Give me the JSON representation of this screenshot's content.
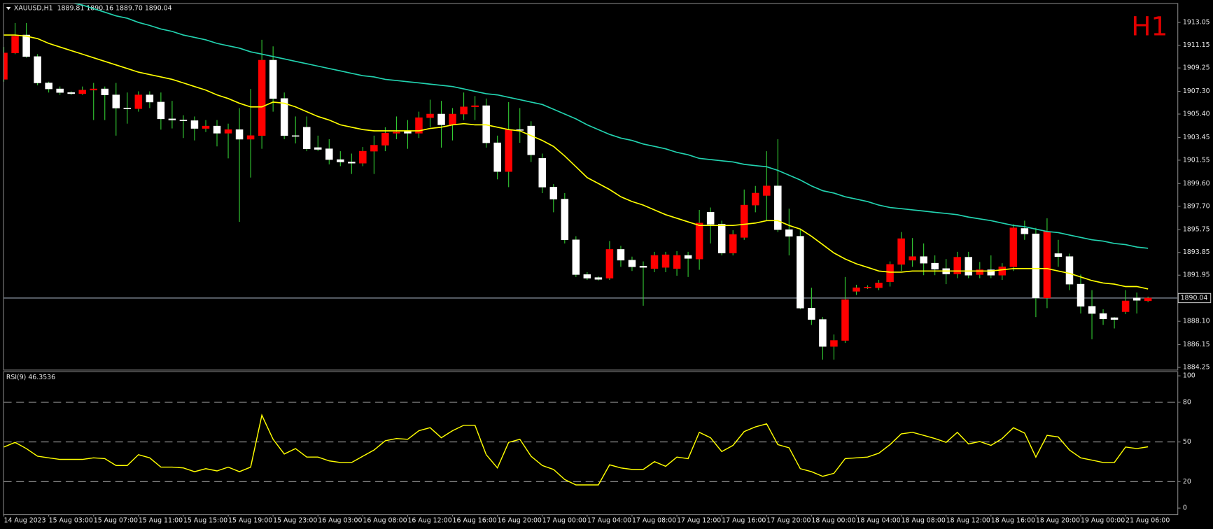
{
  "chart_data": [
    {
      "type": "candlestick",
      "header": "XAUUSD,H1  1889.81 1890.16 1889.70 1890.04",
      "timeframe": "H1",
      "categories": [
        "14 Aug 2023",
        null,
        null,
        null,
        "15 Aug 03:00",
        null,
        null,
        null,
        "15 Aug 07:00",
        null,
        null,
        null,
        "15 Aug 11:00",
        null,
        null,
        null,
        "15 Aug 15:00",
        null,
        null,
        null,
        "15 Aug 19:00",
        null,
        null,
        null,
        "15 Aug 23:00",
        null,
        null,
        null,
        "16 Aug 03:00",
        null,
        null,
        null,
        "16 Aug 08:00",
        null,
        null,
        null,
        "16 Aug 12:00",
        null,
        null,
        null,
        "16 Aug 16:00",
        null,
        null,
        null,
        "16 Aug 20:00",
        null,
        null,
        null,
        "17 Aug 00:00",
        null,
        null,
        null,
        "17 Aug 04:00",
        null,
        null,
        null,
        "17 Aug 08:00",
        null,
        null,
        null,
        "17 Aug 12:00",
        null,
        null,
        null,
        "17 Aug 16:00",
        null,
        null,
        null,
        "17 Aug 20:00",
        null,
        null,
        null,
        "18 Aug 00:00",
        null,
        null,
        null,
        "18 Aug 04:00",
        null,
        null,
        null,
        "18 Aug 08:00",
        null,
        null,
        null,
        "18 Aug 12:00",
        null,
        null,
        null,
        "18 Aug 16:00",
        null,
        null,
        null,
        "18 Aug 20:00",
        null,
        null,
        null,
        "19 Aug 00:00",
        null,
        null,
        null,
        "21 Aug 06:00",
        null,
        null
      ],
      "open": [
        1908.3,
        1910.5,
        1912.0,
        1910.2,
        1908.0,
        1907.5,
        1907.2,
        1907.1,
        1907.4,
        1907.5,
        1907.0,
        1905.9,
        1905.85,
        1907.0,
        1906.4,
        1905.0,
        1904.9,
        1904.85,
        1904.2,
        1904.4,
        1903.8,
        1904.1,
        1903.3,
        1903.6,
        1909.9,
        1906.7,
        1903.6,
        1904.3,
        1902.6,
        1902.5,
        1901.6,
        1901.4,
        1901.3,
        1902.3,
        1902.8,
        1903.8,
        1903.95,
        1903.8,
        1905.1,
        1905.4,
        1904.5,
        1905.4,
        1906.0,
        1906.1,
        1903.0,
        1900.6,
        1904.1,
        1904.4,
        1901.7,
        1899.3,
        1898.3,
        1894.9,
        1892.0,
        1891.75,
        1891.7,
        1894.1,
        1893.2,
        1892.7,
        1892.5,
        1892.6,
        1892.5,
        1893.6,
        1893.3,
        1897.2,
        1896.2,
        1893.8,
        1895.1,
        1897.8,
        1898.6,
        1899.4,
        1895.75,
        1895.2,
        1889.2,
        1888.25,
        1886.0,
        1886.5,
        1890.6,
        1890.9,
        1890.9,
        1891.4,
        1892.85,
        1893.2,
        1893.5,
        1892.95,
        1892.5,
        1892.05,
        1893.45,
        1892.0,
        1892.4,
        1891.95,
        1892.65,
        1895.85,
        1895.4,
        1890.05,
        1893.75,
        1893.5,
        1891.2,
        1889.35,
        1888.75,
        1888.4,
        1888.9,
        1890.05,
        1889.81
      ],
      "high": [
        1911.0,
        1913.0,
        1913.0,
        1910.4,
        1908.1,
        1907.7,
        1907.3,
        1907.7,
        1908.0,
        1907.7,
        1908.0,
        1907.2,
        1907.3,
        1907.3,
        1907.2,
        1906.5,
        1905.3,
        1905.2,
        1904.9,
        1904.9,
        1904.6,
        1905.9,
        1907.5,
        1911.6,
        1911.05,
        1907.2,
        1905.2,
        1905.2,
        1903.6,
        1903.3,
        1902.3,
        1902.1,
        1902.65,
        1903.6,
        1904.3,
        1905.2,
        1904.9,
        1905.6,
        1906.6,
        1906.5,
        1905.9,
        1907.2,
        1906.9,
        1906.7,
        1903.6,
        1906.4,
        1905.9,
        1904.8,
        1902.1,
        1899.55,
        1898.8,
        1895.2,
        1892.2,
        1891.85,
        1894.8,
        1894.4,
        1893.5,
        1893.1,
        1893.9,
        1893.9,
        1893.95,
        1893.9,
        1897.4,
        1897.6,
        1896.5,
        1895.7,
        1899.1,
        1899.4,
        1902.3,
        1903.3,
        1897.5,
        1895.85,
        1890.9,
        1888.45,
        1887.0,
        1891.8,
        1891.15,
        1891.1,
        1891.55,
        1893.1,
        1895.55,
        1895.05,
        1894.6,
        1893.6,
        1893.3,
        1893.9,
        1893.9,
        1893.05,
        1893.6,
        1892.95,
        1896.2,
        1896.5,
        1895.9,
        1896.7,
        1894.9,
        1893.75,
        1892.0,
        1890.7,
        1889.1,
        1888.45,
        1890.7,
        1890.5,
        1890.16
      ],
      "low": [
        1908.1,
        1910.4,
        1910.1,
        1907.8,
        1907.2,
        1907.0,
        1907.0,
        1907.0,
        1904.9,
        1904.9,
        1903.6,
        1904.6,
        1905.6,
        1905.9,
        1904.1,
        1904.2,
        1903.4,
        1903.2,
        1903.9,
        1902.7,
        1901.7,
        1896.4,
        1900.1,
        1902.5,
        1905.6,
        1903.3,
        1902.95,
        1902.3,
        1902.3,
        1901.2,
        1901.05,
        1900.4,
        1901.05,
        1900.4,
        1902.3,
        1903.3,
        1902.5,
        1903.4,
        1904.3,
        1902.6,
        1903.2,
        1904.9,
        1904.9,
        1902.6,
        1899.95,
        1899.3,
        1903.0,
        1901.4,
        1898.8,
        1897.2,
        1894.6,
        1891.8,
        1891.55,
        1891.5,
        1891.55,
        1892.65,
        1892.3,
        1889.4,
        1892.2,
        1892.2,
        1891.9,
        1891.8,
        1892.4,
        1894.6,
        1893.6,
        1893.6,
        1894.9,
        1897.2,
        1896.5,
        1895.55,
        1893.6,
        1889.1,
        1887.8,
        1884.9,
        1884.9,
        1886.3,
        1890.3,
        1890.8,
        1890.7,
        1891.0,
        1892.3,
        1892.65,
        1891.95,
        1891.95,
        1891.2,
        1891.7,
        1891.7,
        1891.7,
        1891.7,
        1891.55,
        1892.3,
        1894.9,
        1888.45,
        1889.2,
        1892.65,
        1890.7,
        1888.75,
        1886.6,
        1887.8,
        1887.5,
        1888.7,
        1888.75,
        1889.7
      ],
      "close": [
        1910.5,
        1911.9,
        1910.2,
        1908.0,
        1907.5,
        1907.2,
        1907.1,
        1907.4,
        1907.5,
        1907.0,
        1905.9,
        1905.85,
        1907.0,
        1906.4,
        1905.0,
        1904.9,
        1904.85,
        1904.2,
        1904.4,
        1903.8,
        1904.1,
        1903.3,
        1903.6,
        1909.9,
        1906.7,
        1903.6,
        1903.55,
        1902.5,
        1902.45,
        1901.6,
        1901.4,
        1901.3,
        1902.3,
        1902.8,
        1903.8,
        1903.9,
        1903.8,
        1905.1,
        1905.4,
        1904.5,
        1905.4,
        1906.0,
        1906.1,
        1903.0,
        1900.6,
        1904.1,
        1904.05,
        1902.0,
        1899.3,
        1898.3,
        1894.9,
        1892.0,
        1891.7,
        1891.6,
        1894.1,
        1893.2,
        1892.65,
        1892.6,
        1893.6,
        1893.65,
        1893.6,
        1893.35,
        1896.3,
        1896.2,
        1893.8,
        1895.35,
        1897.8,
        1898.8,
        1899.4,
        1895.75,
        1895.2,
        1889.2,
        1888.25,
        1886.0,
        1886.5,
        1889.9,
        1890.9,
        1890.95,
        1891.3,
        1892.85,
        1895.0,
        1893.5,
        1892.95,
        1892.45,
        1892.05,
        1893.45,
        1891.95,
        1892.4,
        1891.95,
        1892.65,
        1895.9,
        1895.4,
        1890.05,
        1895.6,
        1893.5,
        1891.2,
        1889.35,
        1888.75,
        1888.3,
        1888.25,
        1889.8,
        1889.85,
        1890.04
      ],
      "up_color": "#ff0000",
      "down_color": "#ffffff",
      "wick_color": "#33cc33",
      "series": [
        {
          "color": "#ffff00",
          "values": [
            1912.0,
            1912.0,
            1911.9,
            1911.7,
            1911.3,
            1911.0,
            1910.7,
            1910.4,
            1910.1,
            1909.8,
            1909.5,
            1909.2,
            1908.9,
            1908.7,
            1908.5,
            1908.3,
            1908.0,
            1907.7,
            1907.4,
            1907.0,
            1906.7,
            1906.3,
            1906.0,
            1906.0,
            1906.4,
            1906.3,
            1906.0,
            1905.6,
            1905.2,
            1904.9,
            1904.5,
            1904.3,
            1904.1,
            1904.0,
            1904.0,
            1904.0,
            1904.0,
            1904.0,
            1904.2,
            1904.3,
            1904.5,
            1904.6,
            1904.5,
            1904.5,
            1904.3,
            1904.1,
            1904.0,
            1903.6,
            1903.2,
            1902.7,
            1901.9,
            1901.0,
            1900.1,
            1899.6,
            1899.1,
            1898.5,
            1898.1,
            1897.8,
            1897.4,
            1897.0,
            1896.7,
            1896.4,
            1896.1,
            1896.1,
            1896.1,
            1896.1,
            1896.2,
            1896.3,
            1896.5,
            1896.5,
            1896.1,
            1895.8,
            1895.2,
            1894.5,
            1893.8,
            1893.3,
            1892.9,
            1892.6,
            1892.3,
            1892.2,
            1892.2,
            1892.3,
            1892.3,
            1892.3,
            1892.3,
            1892.3,
            1892.3,
            1892.3,
            1892.3,
            1892.4,
            1892.5,
            1892.5,
            1892.5,
            1892.5,
            1892.3,
            1892.1,
            1891.8,
            1891.5,
            1891.3,
            1891.2,
            1891.0,
            1891.0,
            1890.8
          ]
        },
        {
          "color": "#22d3b0",
          "values": [
            null,
            null,
            null,
            null,
            null,
            null,
            1914.7,
            1914.5,
            1914.2,
            1913.9,
            1913.6,
            1913.4,
            1913.05,
            1912.8,
            1912.5,
            1912.3,
            1912.0,
            1911.8,
            1911.6,
            1911.3,
            1911.1,
            1910.9,
            1910.6,
            1910.4,
            1910.2,
            1910.0,
            1909.8,
            1909.6,
            1909.4,
            1909.2,
            1909.0,
            1908.8,
            1908.6,
            1908.5,
            1908.3,
            1908.2,
            1908.1,
            1908.0,
            1907.9,
            1907.8,
            1907.7,
            1907.5,
            1907.3,
            1907.1,
            1907.0,
            1906.8,
            1906.6,
            1906.4,
            1906.2,
            1905.8,
            1905.4,
            1905.0,
            1904.5,
            1904.1,
            1903.7,
            1903.4,
            1903.2,
            1902.9,
            1902.7,
            1902.5,
            1902.2,
            1902.0,
            1901.7,
            1901.6,
            1901.5,
            1901.4,
            1901.2,
            1901.1,
            1901.0,
            1900.7,
            1900.3,
            1899.9,
            1899.4,
            1899.0,
            1898.8,
            1898.5,
            1898.3,
            1898.1,
            1897.8,
            1897.6,
            1897.5,
            1897.4,
            1897.3,
            1897.2,
            1897.1,
            1897.0,
            1896.8,
            1896.65,
            1896.5,
            1896.3,
            1896.1,
            1896.0,
            1895.8,
            1895.6,
            1895.5,
            1895.3,
            1895.1,
            1894.9,
            1894.8,
            1894.6,
            1894.5,
            1894.3,
            1894.2
          ]
        }
      ],
      "ylim": [
        1884.06,
        1914.6
      ],
      "yticks": [
        1884.25,
        1886.15,
        {
          "value": 1888.1,
          "label": "1888.10"
        },
        1891.95,
        1893.85,
        1895.75,
        {
          "value": 1897.7,
          "label": "1897.70"
        },
        {
          "value": 1899.6,
          "label": "1899.60"
        },
        1901.55,
        1903.45,
        {
          "value": 1905.4,
          "label": "1905.40"
        },
        {
          "value": 1907.3,
          "label": "1907.30"
        },
        1909.25,
        1911.15,
        1913.05
      ],
      "price_line": 1890.04
    },
    {
      "type": "line",
      "title": "RSI(9) 46.3536",
      "color": "#ffff00",
      "values": [
        46.2,
        49.7,
        45.0,
        39.2,
        38.0,
        36.8,
        36.8,
        36.8,
        38.0,
        37.4,
        32.2,
        32.2,
        40.4,
        38.0,
        31.0,
        31.0,
        30.4,
        27.5,
        29.8,
        28.1,
        31.0,
        27.5,
        31.0,
        70.2,
        52.0,
        40.9,
        45.0,
        38.6,
        38.6,
        35.7,
        34.5,
        34.5,
        39.2,
        43.9,
        50.9,
        52.6,
        52.0,
        58.5,
        60.8,
        53.2,
        58.5,
        62.6,
        62.6,
        40.4,
        30.4,
        49.7,
        52.0,
        39.2,
        32.2,
        29.2,
        21.6,
        17.5,
        17.5,
        17.5,
        32.7,
        30.4,
        29.2,
        29.2,
        35.1,
        31.6,
        38.6,
        37.4,
        57.3,
        53.2,
        42.7,
        47.4,
        57.9,
        61.4,
        63.7,
        48.0,
        45.6,
        29.8,
        27.5,
        24.0,
        26.3,
        37.4,
        38.0,
        38.6,
        41.5,
        48.0,
        56.1,
        57.3,
        55.0,
        52.6,
        49.7,
        57.3,
        48.5,
        50.3,
        47.4,
        52.6,
        60.8,
        56.7,
        38.6,
        55.0,
        53.8,
        43.9,
        38.0,
        36.3,
        34.5,
        34.5,
        46.2,
        45.0,
        46.3536
      ],
      "ylim": [
        -4.7,
        102.9
      ],
      "yticks": [
        0,
        20,
        50,
        80,
        100
      ],
      "levels": [
        20,
        50,
        80
      ]
    }
  ]
}
